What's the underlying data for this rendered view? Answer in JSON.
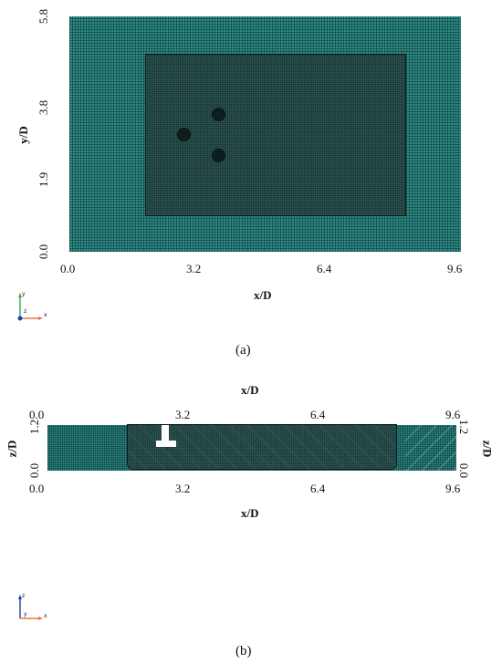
{
  "panel_a": {
    "x_ticks": [
      "0.0",
      "3.2",
      "6.4",
      "9.6"
    ],
    "y_ticks": [
      "0.0",
      "1.9",
      "3.8",
      "5.8"
    ],
    "xlabel": "x/D",
    "ylabel": "y/D",
    "caption": "(a)",
    "triad": {
      "axis1": "y",
      "axis2": "x",
      "axis3": "z"
    },
    "colors": {
      "coarse_mesh": "#2f8a86",
      "refined_region": "#18302f",
      "cylinders": "#0e1e1d"
    }
  },
  "panel_b": {
    "top_x_ticks": [
      "0.0",
      "3.2",
      "6.4",
      "9.6"
    ],
    "bottom_x_ticks": [
      "0.0",
      "3.2",
      "6.4",
      "9.6"
    ],
    "left_z_ticks": [
      "0.0",
      "1.2"
    ],
    "right_z_ticks": [
      "0.0",
      "1.2"
    ],
    "top_xlabel": "x/D",
    "bottom_xlabel": "x/D",
    "left_zlabel": "z/D",
    "right_zlabel": "z/D",
    "caption": "(b)",
    "triad": {
      "axis1": "z",
      "axis2": "x",
      "axis3": "y"
    }
  }
}
